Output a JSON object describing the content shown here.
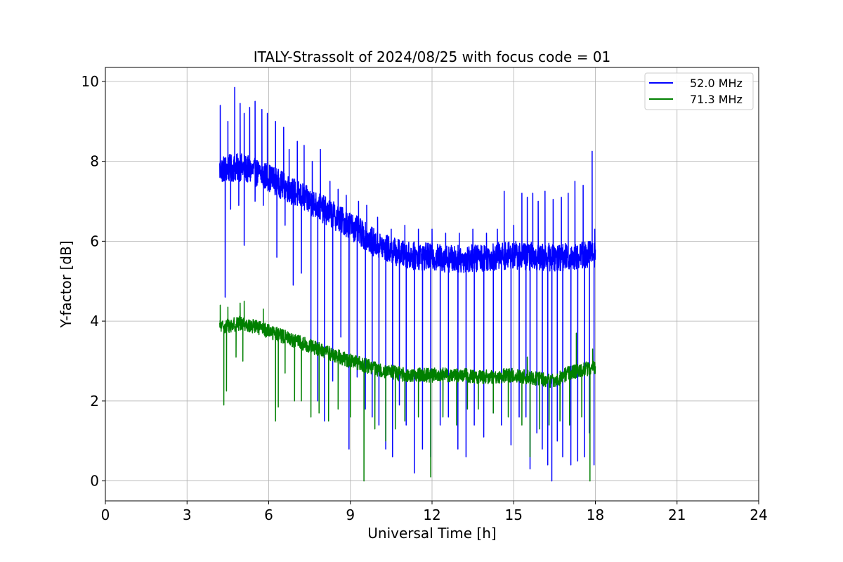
{
  "chart_data": {
    "type": "line",
    "title": "ITALY-Strassolt of 2024/08/25 with focus code = 01",
    "xlabel": "Universal Time [h]",
    "ylabel": "Y-factor [dB]",
    "xlim": [
      0,
      24
    ],
    "ylim": [
      -0.5,
      10.35
    ],
    "xticks": [
      0,
      3,
      6,
      9,
      12,
      15,
      18,
      21,
      24
    ],
    "yticks": [
      0,
      2,
      4,
      6,
      8,
      10
    ],
    "xtick_labels": [
      "0",
      "3",
      "6",
      "9",
      "12",
      "15",
      "18",
      "21",
      "24"
    ],
    "ytick_labels": [
      "0",
      "2",
      "4",
      "6",
      "8",
      "10"
    ],
    "grid": true,
    "legend_position": "top-right",
    "series": [
      {
        "name": "52.0 MHz",
        "color": "#0000ff",
        "noise_amplitude": 0.35,
        "baseline": [
          [
            4.2,
            7.8
          ],
          [
            5.0,
            7.85
          ],
          [
            6.0,
            7.6
          ],
          [
            7.0,
            7.2
          ],
          [
            8.0,
            6.8
          ],
          [
            9.0,
            6.4
          ],
          [
            10.0,
            5.9
          ],
          [
            11.0,
            5.65
          ],
          [
            12.0,
            5.6
          ],
          [
            13.0,
            5.55
          ],
          [
            14.0,
            5.6
          ],
          [
            15.0,
            5.65
          ],
          [
            16.0,
            5.6
          ],
          [
            17.0,
            5.6
          ],
          [
            18.0,
            5.7
          ]
        ],
        "spikes_up": [
          [
            4.22,
            9.4
          ],
          [
            4.5,
            9.0
          ],
          [
            4.75,
            9.85
          ],
          [
            4.95,
            9.45
          ],
          [
            5.1,
            9.2
          ],
          [
            5.3,
            9.35
          ],
          [
            5.5,
            9.5
          ],
          [
            5.75,
            9.3
          ],
          [
            5.95,
            9.2
          ],
          [
            6.25,
            9.0
          ],
          [
            6.55,
            8.85
          ],
          [
            6.75,
            8.3
          ],
          [
            7.05,
            8.5
          ],
          [
            7.3,
            8.4
          ],
          [
            7.6,
            8.0
          ],
          [
            7.9,
            8.3
          ],
          [
            8.25,
            7.5
          ],
          [
            8.55,
            7.3
          ],
          [
            8.85,
            7.15
          ],
          [
            9.3,
            7.0
          ],
          [
            9.6,
            6.9
          ],
          [
            10.0,
            6.6
          ],
          [
            10.5,
            6.3
          ],
          [
            11.0,
            6.4
          ],
          [
            11.5,
            6.3
          ],
          [
            12.0,
            6.3
          ],
          [
            12.5,
            6.2
          ],
          [
            13.0,
            6.2
          ],
          [
            13.5,
            6.3
          ],
          [
            14.0,
            6.2
          ],
          [
            14.4,
            6.3
          ],
          [
            14.65,
            7.25
          ],
          [
            15.0,
            6.4
          ],
          [
            15.3,
            7.2
          ],
          [
            15.5,
            7.1
          ],
          [
            15.7,
            7.2
          ],
          [
            15.9,
            7.0
          ],
          [
            16.15,
            7.25
          ],
          [
            16.45,
            7.05
          ],
          [
            16.75,
            7.1
          ],
          [
            17.0,
            7.2
          ],
          [
            17.25,
            7.5
          ],
          [
            17.55,
            7.4
          ],
          [
            17.88,
            8.25
          ],
          [
            17.98,
            6.3
          ]
        ],
        "spikes_down": [
          [
            4.4,
            4.6
          ],
          [
            4.6,
            6.8
          ],
          [
            4.9,
            6.9
          ],
          [
            5.1,
            5.9
          ],
          [
            5.5,
            7.0
          ],
          [
            5.8,
            6.9
          ],
          [
            6.3,
            5.6
          ],
          [
            6.6,
            6.4
          ],
          [
            6.9,
            4.9
          ],
          [
            7.2,
            5.2
          ],
          [
            7.55,
            3.2
          ],
          [
            7.8,
            2.0
          ],
          [
            8.05,
            1.5
          ],
          [
            8.35,
            2.5
          ],
          [
            8.65,
            3.6
          ],
          [
            8.95,
            0.8
          ],
          [
            9.25,
            2.6
          ],
          [
            9.55,
            1.8
          ],
          [
            9.8,
            1.6
          ],
          [
            10.05,
            1.4
          ],
          [
            10.3,
            0.8
          ],
          [
            10.55,
            0.6
          ],
          [
            10.8,
            1.9
          ],
          [
            11.05,
            1.4
          ],
          [
            11.35,
            0.2
          ],
          [
            11.65,
            0.8
          ],
          [
            11.95,
            0.6
          ],
          [
            12.3,
            1.4
          ],
          [
            12.6,
            1.6
          ],
          [
            12.95,
            0.8
          ],
          [
            13.25,
            0.6
          ],
          [
            13.55,
            1.4
          ],
          [
            13.9,
            1.1
          ],
          [
            14.25,
            1.7
          ],
          [
            14.55,
            1.4
          ],
          [
            14.9,
            0.9
          ],
          [
            15.2,
            1.6
          ],
          [
            15.45,
            1.6
          ],
          [
            15.6,
            0.3
          ],
          [
            15.85,
            1.2
          ],
          [
            16.05,
            0.8
          ],
          [
            16.25,
            0.4
          ],
          [
            16.4,
            0.0
          ],
          [
            16.6,
            1.0
          ],
          [
            16.8,
            0.6
          ],
          [
            17.1,
            0.4
          ],
          [
            17.35,
            0.5
          ],
          [
            17.6,
            0.6
          ],
          [
            17.78,
            1.2
          ],
          [
            17.95,
            0.4
          ]
        ]
      },
      {
        "name": "71.3 MHz",
        "color": "#008000",
        "noise_amplitude": 0.18,
        "baseline": [
          [
            4.2,
            3.85
          ],
          [
            5.0,
            3.95
          ],
          [
            6.0,
            3.75
          ],
          [
            7.0,
            3.5
          ],
          [
            8.0,
            3.25
          ],
          [
            9.0,
            3.0
          ],
          [
            10.0,
            2.8
          ],
          [
            11.0,
            2.65
          ],
          [
            12.0,
            2.65
          ],
          [
            13.0,
            2.65
          ],
          [
            14.0,
            2.6
          ],
          [
            15.0,
            2.65
          ],
          [
            16.0,
            2.55
          ],
          [
            16.5,
            2.5
          ],
          [
            17.0,
            2.7
          ],
          [
            18.0,
            2.85
          ]
        ],
        "spikes_up": [
          [
            4.22,
            4.4
          ],
          [
            4.5,
            4.35
          ],
          [
            4.95,
            4.45
          ],
          [
            5.1,
            4.5
          ],
          [
            5.8,
            4.3
          ],
          [
            15.5,
            3.1
          ],
          [
            17.3,
            3.7
          ],
          [
            17.9,
            3.3
          ]
        ],
        "spikes_down": [
          [
            4.35,
            1.9
          ],
          [
            4.45,
            2.25
          ],
          [
            4.8,
            3.1
          ],
          [
            5.05,
            3.0
          ],
          [
            6.25,
            1.5
          ],
          [
            6.35,
            1.85
          ],
          [
            6.6,
            2.7
          ],
          [
            6.95,
            2.0
          ],
          [
            7.2,
            2.0
          ],
          [
            7.55,
            1.6
          ],
          [
            7.85,
            1.7
          ],
          [
            8.2,
            1.5
          ],
          [
            8.55,
            1.8
          ],
          [
            9.0,
            1.6
          ],
          [
            9.5,
            0.0
          ],
          [
            9.9,
            1.3
          ],
          [
            10.3,
            1.0
          ],
          [
            10.65,
            1.3
          ],
          [
            11.0,
            1.5
          ],
          [
            11.5,
            1.6
          ],
          [
            11.95,
            0.1
          ],
          [
            12.4,
            1.6
          ],
          [
            12.9,
            1.4
          ],
          [
            13.3,
            1.8
          ],
          [
            13.7,
            1.8
          ],
          [
            14.25,
            1.7
          ],
          [
            14.8,
            1.6
          ],
          [
            15.3,
            1.4
          ],
          [
            15.6,
            0.6
          ],
          [
            15.95,
            1.3
          ],
          [
            16.3,
            1.4
          ],
          [
            16.7,
            1.5
          ],
          [
            17.05,
            1.4
          ],
          [
            17.5,
            1.6
          ],
          [
            17.8,
            0.0
          ]
        ]
      }
    ]
  }
}
